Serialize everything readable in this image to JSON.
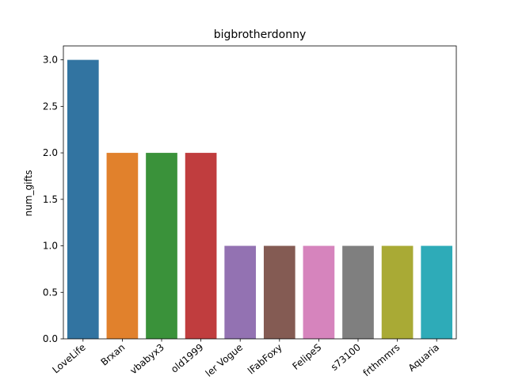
{
  "chart_data": {
    "type": "bar",
    "title": "bigbrotherdonny",
    "xlabel": "",
    "ylabel": "num_gifts",
    "categories": [
      "LoveLife",
      "Brxan",
      "vbabyx3",
      "old1999",
      "ler Vogue",
      "lFabFoxy",
      "FelipeS",
      "s73100",
      "frthmmrs",
      "Aquaria"
    ],
    "values": [
      3,
      2,
      2,
      2,
      1,
      1,
      1,
      1,
      1,
      1
    ],
    "ylim": [
      0,
      3.15
    ],
    "yticks": [
      "0.0",
      "0.5",
      "1.0",
      "1.5",
      "2.0",
      "2.5",
      "3.0"
    ],
    "colors": [
      "#3274a1",
      "#e1812c",
      "#3a923a",
      "#c03d3e",
      "#9372b2",
      "#845b53",
      "#d684bd",
      "#7f7f7f",
      "#a9aa35",
      "#2eabb8"
    ],
    "grid": false,
    "legend": "none"
  }
}
